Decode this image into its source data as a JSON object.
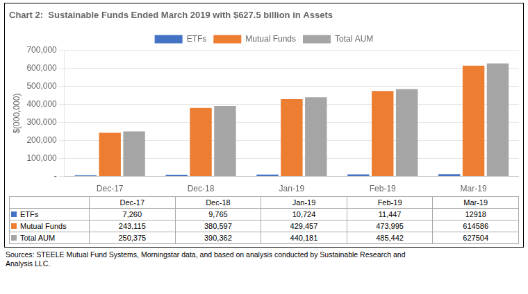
{
  "chart_data": {
    "type": "bar",
    "title": "Chart 2:  Sustainable Funds Ended March 2019 with $627.5 billion in Assets",
    "categories": [
      "Dec-17",
      "Dec-18",
      "Jan-19",
      "Feb-19",
      "Mar-19"
    ],
    "series": [
      {
        "name": "ETFs",
        "color": "#4472C4",
        "values": [
          7260,
          9765,
          10724,
          11447,
          12918
        ]
      },
      {
        "name": "Mutual Funds",
        "color": "#ED7D31",
        "values": [
          243115,
          380597,
          429457,
          473995,
          614586
        ]
      },
      {
        "name": "Total AUM",
        "color": "#A5A5A5",
        "values": [
          250375,
          390362,
          440181,
          485442,
          627504
        ]
      }
    ],
    "ylabel": "$(000,000)",
    "ylim": [
      0,
      700000
    ],
    "yticks": [
      {
        "value": 0,
        "label": "-"
      },
      {
        "value": 100000,
        "label": "100,000"
      },
      {
        "value": 200000,
        "label": "200,000"
      },
      {
        "value": 300000,
        "label": "300,000"
      },
      {
        "value": 400000,
        "label": "400,000"
      },
      {
        "value": 500000,
        "label": "500,000"
      },
      {
        "value": 600000,
        "label": "600,000"
      },
      {
        "value": 700000,
        "label": "700,000"
      }
    ],
    "grid": true,
    "legend": "top",
    "table": {
      "rows": [
        {
          "name": "ETFs",
          "color": "#4472C4",
          "cells": [
            "7,260",
            "9,765",
            "10,724",
            "11,447",
            "12918"
          ]
        },
        {
          "name": "Mutual Funds",
          "color": "#ED7D31",
          "cells": [
            "243,115",
            "380,597",
            "429,457",
            "473,995",
            "614586"
          ]
        },
        {
          "name": "Total AUM",
          "color": "#A5A5A5",
          "cells": [
            "250,375",
            "390,362",
            "440,181",
            "485,442",
            "627504"
          ]
        }
      ]
    },
    "source": "Sources:  STEELE Mutual Fund Systems, Morningstar data, and based on analysis conducted by Sustainable Research and\nAnalysis LLC."
  }
}
